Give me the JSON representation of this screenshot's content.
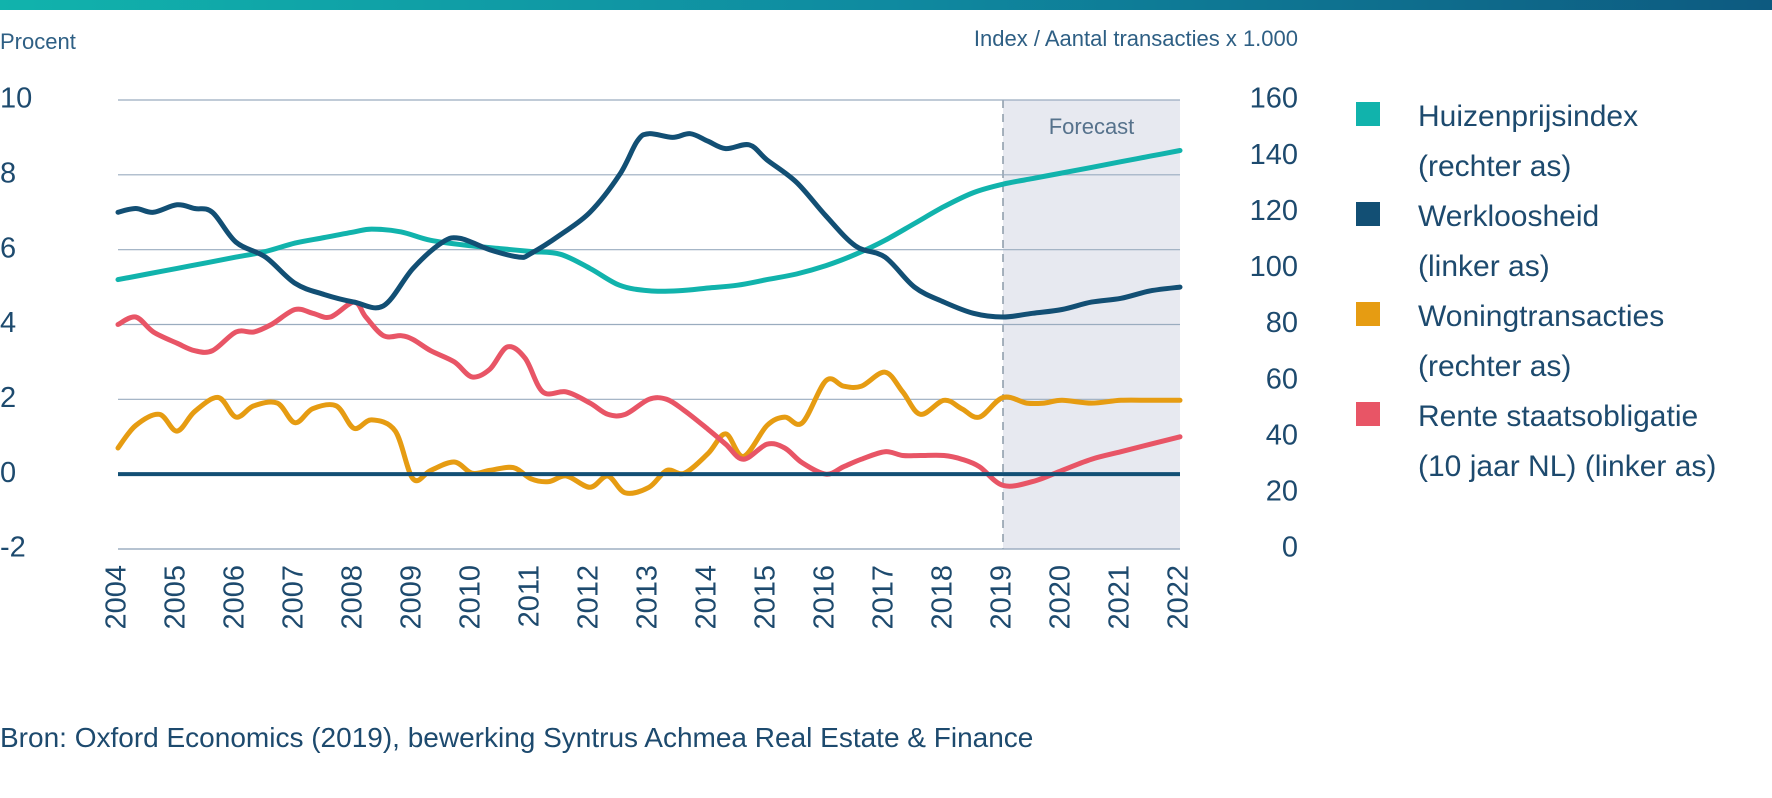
{
  "chart_data": {
    "type": "line",
    "left_axis_title": "Procent",
    "right_axis_title": "Index / Aantal transacties x 1.000",
    "left_ylim": [
      -2,
      10
    ],
    "left_ticks": [
      "10",
      "8",
      "6",
      "4",
      "2",
      "0",
      "-2"
    ],
    "right_ylim": [
      0,
      160
    ],
    "right_ticks": [
      "160",
      "140",
      "120",
      "100",
      "80",
      "60",
      "40",
      "20",
      "0"
    ],
    "xlim": [
      2004,
      2022
    ],
    "x_ticks": [
      "2004",
      "2005",
      "2006",
      "2007",
      "2008",
      "2009",
      "2010",
      "2011",
      "2012",
      "2013",
      "2014",
      "2015",
      "2016",
      "2017",
      "2018",
      "2019",
      "2020",
      "2021",
      "2022"
    ],
    "forecast_label": "Forecast",
    "forecast_start": 2019,
    "grid": true,
    "legend_placement": "right",
    "series": [
      {
        "name": "Huizenprijsindex (rechter as)",
        "axis": "right",
        "color": "#11b3ac",
        "x": [
          2004,
          2004.5,
          2005,
          2005.5,
          2006,
          2006.5,
          2007,
          2007.5,
          2008,
          2008.3,
          2008.8,
          2009.3,
          2010,
          2010.5,
          2011,
          2011.5,
          2012,
          2012.5,
          2013,
          2013.5,
          2014,
          2014.5,
          2015,
          2015.5,
          2016,
          2016.5,
          2017,
          2017.5,
          2018,
          2018.5,
          2019,
          2019.5,
          2020,
          2020.5,
          2021,
          2021.5,
          2022
        ],
        "y": [
          96,
          98,
          100,
          102,
          104,
          106,
          109,
          111,
          113,
          114,
          113,
          110,
          108,
          107,
          106,
          105,
          100,
          94,
          92,
          92,
          93,
          94,
          96,
          98,
          101,
          105,
          110,
          116,
          122,
          127,
          130,
          132,
          134,
          136,
          138,
          140,
          142
        ]
      },
      {
        "name": "Werkloosheid (linker as)",
        "axis": "left",
        "color": "#124f74",
        "x": [
          2004,
          2004.3,
          2004.6,
          2005,
          2005.3,
          2005.6,
          2006,
          2006.5,
          2007,
          2007.5,
          2008,
          2008.5,
          2009,
          2009.5,
          2009.8,
          2010.3,
          2010.8,
          2011,
          2011.5,
          2012,
          2012.5,
          2012.8,
          2013,
          2013.4,
          2013.7,
          2014,
          2014.3,
          2014.7,
          2015,
          2015.5,
          2016,
          2016.5,
          2017,
          2017.5,
          2018,
          2018.5,
          2019,
          2019.5,
          2020,
          2020.5,
          2021,
          2021.5,
          2022
        ],
        "y": [
          7.0,
          7.1,
          7.0,
          7.2,
          7.1,
          7.0,
          6.2,
          5.8,
          5.1,
          4.8,
          4.6,
          4.5,
          5.5,
          6.2,
          6.3,
          6.0,
          5.8,
          5.9,
          6.4,
          7.0,
          8.0,
          8.9,
          9.1,
          9.0,
          9.1,
          8.9,
          8.7,
          8.8,
          8.4,
          7.8,
          6.9,
          6.1,
          5.8,
          5.0,
          4.6,
          4.3,
          4.2,
          4.3,
          4.4,
          4.6,
          4.7,
          4.9,
          5.0
        ]
      },
      {
        "name": "Woningtransacties (rechter as)",
        "axis": "right",
        "color": "#e69c12",
        "x": [
          2004,
          2004.3,
          2004.7,
          2005,
          2005.3,
          2005.7,
          2006,
          2006.3,
          2006.7,
          2007,
          2007.3,
          2007.7,
          2008,
          2008.3,
          2008.7,
          2009,
          2009.3,
          2009.7,
          2010,
          2010.3,
          2010.7,
          2011,
          2011.3,
          2011.6,
          2012,
          2012.3,
          2012.6,
          2013,
          2013.3,
          2013.6,
          2014,
          2014.3,
          2014.6,
          2015,
          2015.3,
          2015.6,
          2016,
          2016.3,
          2016.6,
          2017,
          2017.3,
          2017.6,
          2018,
          2018.3,
          2018.6,
          2019,
          2019.4,
          2019.7,
          2020,
          2020.5,
          2021,
          2021.5,
          2022
        ],
        "y": [
          36,
          44,
          48,
          42,
          49,
          54,
          47,
          51,
          52,
          45,
          50,
          51,
          43,
          46,
          42,
          25,
          28,
          31,
          27,
          28,
          29,
          25,
          24,
          26,
          22,
          26,
          20,
          22,
          28,
          27,
          34,
          41,
          33,
          44,
          47,
          45,
          60,
          58,
          58,
          63,
          56,
          48,
          53,
          50,
          47,
          54,
          52,
          52,
          53,
          52,
          53,
          53,
          53
        ]
      },
      {
        "name": "Rente staatsobligatie (10 jaar NL) (linker as)",
        "axis": "left",
        "color": "#e85566",
        "x": [
          2004,
          2004.3,
          2004.6,
          2005,
          2005.3,
          2005.6,
          2006,
          2006.3,
          2006.6,
          2007,
          2007.3,
          2007.6,
          2008,
          2008.2,
          2008.5,
          2008.8,
          2009,
          2009.3,
          2009.7,
          2010,
          2010.3,
          2010.6,
          2010.9,
          2011.2,
          2011.6,
          2012,
          2012.3,
          2012.6,
          2013,
          2013.3,
          2013.6,
          2014,
          2014.3,
          2014.6,
          2015,
          2015.3,
          2015.6,
          2016,
          2016.3,
          2016.6,
          2017,
          2017.3,
          2017.6,
          2018,
          2018.3,
          2018.6,
          2019,
          2019.5,
          2020,
          2020.5,
          2021,
          2021.5,
          2022
        ],
        "y": [
          4.0,
          4.2,
          3.8,
          3.5,
          3.3,
          3.3,
          3.8,
          3.8,
          4.0,
          4.4,
          4.3,
          4.2,
          4.6,
          4.2,
          3.7,
          3.7,
          3.6,
          3.3,
          3.0,
          2.6,
          2.8,
          3.4,
          3.1,
          2.2,
          2.2,
          1.9,
          1.6,
          1.6,
          2.0,
          2.0,
          1.7,
          1.2,
          0.8,
          0.4,
          0.8,
          0.7,
          0.3,
          0.0,
          0.2,
          0.4,
          0.6,
          0.5,
          0.5,
          0.5,
          0.4,
          0.2,
          -0.3,
          -0.2,
          0.1,
          0.4,
          0.6,
          0.8,
          1.0
        ]
      }
    ]
  },
  "legend": [
    {
      "line1": "Huizenprijsindex",
      "line2": "(rechter as)",
      "color": "#11b3ac"
    },
    {
      "line1": "Werkloosheid",
      "line2": "(linker as)",
      "color": "#124f74"
    },
    {
      "line1": "Woningtransacties",
      "line2": "(rechter as)",
      "color": "#e69c12"
    },
    {
      "line1": "Rente staatsobligatie",
      "line2": "(10 jaar NL) (linker as)",
      "color": "#e85566"
    }
  ],
  "source": "Bron: Oxford Economics (2019), bewerking Syntrus Achmea Real Estate & Finance"
}
